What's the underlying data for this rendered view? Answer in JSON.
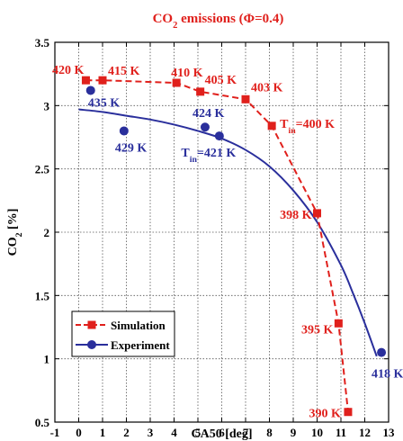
{
  "chart_data": {
    "type": "line",
    "title": "CO2 emissions (Φ=0.4)",
    "xlabel": "CA50 [deg]",
    "ylabel": "CO2 [%]",
    "xlim": [
      -1,
      13
    ],
    "ylim": [
      0.5,
      3.5
    ],
    "xticks": [
      -1,
      0,
      1,
      2,
      3,
      4,
      5,
      6,
      7,
      8,
      9,
      10,
      11,
      12,
      13
    ],
    "yticks": [
      0.5,
      1,
      1.5,
      2,
      2.5,
      3,
      3.5
    ],
    "grid": true,
    "legend_position": "bottom-left",
    "colors": {
      "simulation": "#e0201c",
      "experiment": "#2a2f9c"
    },
    "series": [
      {
        "name": "Simulation",
        "style": "dashed line, square markers",
        "points": [
          {
            "x": 0.3,
            "y": 3.2,
            "label": "420 K"
          },
          {
            "x": 1.0,
            "y": 3.2,
            "label": "415 K"
          },
          {
            "x": 4.1,
            "y": 3.18,
            "label": "410 K"
          },
          {
            "x": 5.1,
            "y": 3.11,
            "label": "405 K"
          },
          {
            "x": 7.0,
            "y": 3.05,
            "label": "403 K"
          },
          {
            "x": 8.1,
            "y": 2.84,
            "label": "T_in=400 K"
          },
          {
            "x": 10.0,
            "y": 2.15,
            "label": "398 K"
          },
          {
            "x": 10.9,
            "y": 1.28,
            "label": "395 K"
          },
          {
            "x": 11.3,
            "y": 0.58,
            "label": "390 K"
          }
        ]
      },
      {
        "name": "Experiment",
        "style": "solid fit curve, circle markers",
        "points": [
          {
            "x": 0.5,
            "y": 3.12,
            "label": "435 K"
          },
          {
            "x": 1.9,
            "y": 2.8,
            "label": "429 K"
          },
          {
            "x": 5.3,
            "y": 2.83,
            "label": "424 K"
          },
          {
            "x": 5.9,
            "y": 2.76,
            "label": "T_in=421 K"
          },
          {
            "x": 12.7,
            "y": 1.05,
            "label": "418 K"
          }
        ],
        "fit_curve": [
          {
            "x": 0,
            "y": 2.97
          },
          {
            "x": 1,
            "y": 2.95
          },
          {
            "x": 2,
            "y": 2.92
          },
          {
            "x": 3,
            "y": 2.89
          },
          {
            "x": 4,
            "y": 2.85
          },
          {
            "x": 5,
            "y": 2.8
          },
          {
            "x": 6,
            "y": 2.74
          },
          {
            "x": 7,
            "y": 2.65
          },
          {
            "x": 8,
            "y": 2.52
          },
          {
            "x": 9,
            "y": 2.33
          },
          {
            "x": 10,
            "y": 2.08
          },
          {
            "x": 11,
            "y": 1.74
          },
          {
            "x": 11.5,
            "y": 1.52
          },
          {
            "x": 12,
            "y": 1.28
          },
          {
            "x": 12.5,
            "y": 1.02
          }
        ]
      }
    ]
  }
}
